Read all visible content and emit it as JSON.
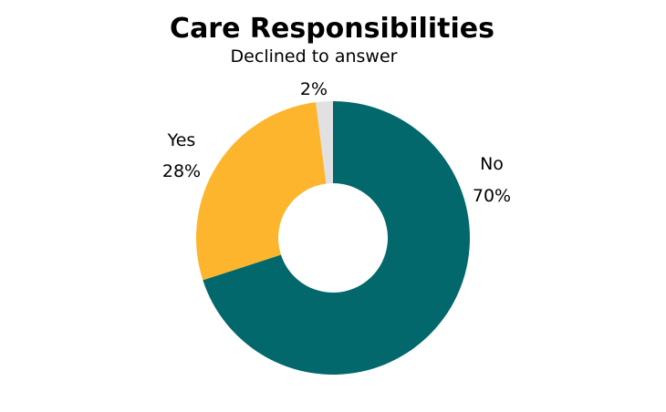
{
  "chart_data": {
    "type": "pie",
    "title": "Care Responsibilities",
    "donut": true,
    "slices": [
      {
        "label": "No",
        "value": 70,
        "value_label": "70%",
        "color": "#02686b"
      },
      {
        "label": "Yes",
        "value": 28,
        "value_label": "28%",
        "color": "#fdb52d"
      },
      {
        "label": "Declined to answer",
        "value": 2,
        "value_label": "2%",
        "color": "#e1e1e3"
      }
    ]
  }
}
